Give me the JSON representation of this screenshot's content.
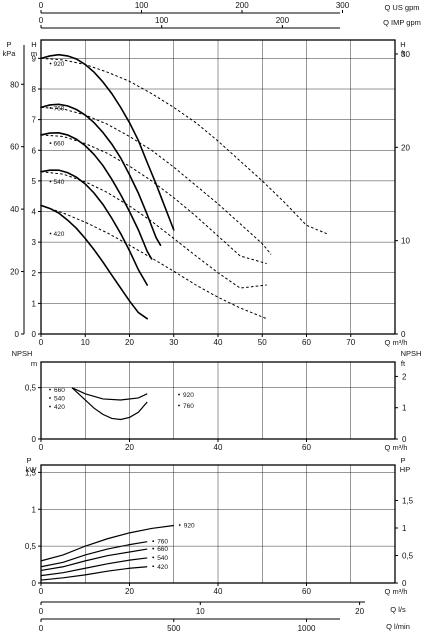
{
  "chart_data": [
    {
      "type": "line",
      "panel": "head",
      "title": "",
      "xlabel": "Q m³/h",
      "xlim": [
        0,
        80
      ],
      "xticks": [
        0,
        10,
        20,
        30,
        40,
        50,
        60,
        70
      ],
      "y_left_label": "H m",
      "y_left2_label": "P kPa",
      "y_right_label": "H ft",
      "ylim": [
        0,
        9.6
      ],
      "yticks": [
        0,
        1,
        2,
        3,
        4,
        5,
        6,
        7,
        8,
        9
      ],
      "kpa_ticks": [
        0,
        20,
        40,
        60,
        80
      ],
      "ft_ticks": [
        0,
        10,
        20,
        30
      ],
      "top_axes": [
        {
          "label": "Q US gpm",
          "ticks": [
            0,
            100,
            200,
            300
          ]
        },
        {
          "label": "Q IMP gpm",
          "ticks": [
            0,
            100,
            200
          ]
        }
      ],
      "grid": true,
      "series": [
        {
          "name": "920",
          "style": "solid",
          "x": [
            0,
            2,
            4,
            6,
            8,
            10,
            12,
            14,
            16,
            18,
            20,
            22,
            24,
            26,
            28,
            30
          ],
          "y": [
            9.0,
            9.08,
            9.12,
            9.08,
            8.98,
            8.8,
            8.55,
            8.23,
            7.85,
            7.4,
            6.9,
            6.32,
            5.6,
            4.9,
            4.15,
            3.4
          ]
        },
        {
          "name": "920",
          "style": "dashed",
          "x": [
            0,
            5,
            10,
            15,
            20,
            25,
            30,
            35,
            40,
            45,
            50,
            55,
            60,
            65
          ],
          "y": [
            9.0,
            8.95,
            8.8,
            8.55,
            8.25,
            7.85,
            7.4,
            6.9,
            6.3,
            5.65,
            5.0,
            4.3,
            3.55,
            3.25
          ]
        },
        {
          "name": "760",
          "style": "solid",
          "x": [
            0,
            2,
            4,
            6,
            8,
            10,
            12,
            14,
            16,
            18,
            20,
            22,
            24,
            26,
            27
          ],
          "y": [
            7.4,
            7.48,
            7.5,
            7.45,
            7.33,
            7.15,
            6.9,
            6.58,
            6.2,
            5.75,
            5.2,
            4.6,
            3.9,
            3.15,
            2.9
          ]
        },
        {
          "name": "760",
          "style": "dashed",
          "x": [
            0,
            5,
            10,
            15,
            20,
            25,
            30,
            35,
            40,
            45,
            50,
            52
          ],
          "y": [
            7.4,
            7.35,
            7.15,
            6.85,
            6.45,
            6.0,
            5.45,
            4.85,
            4.25,
            3.6,
            2.95,
            2.6
          ]
        },
        {
          "name": "660",
          "style": "solid",
          "x": [
            0,
            2,
            4,
            6,
            8,
            10,
            12,
            14,
            16,
            18,
            20,
            22,
            24,
            25
          ],
          "y": [
            6.5,
            6.56,
            6.57,
            6.5,
            6.36,
            6.15,
            5.86,
            5.5,
            5.05,
            4.55,
            4.0,
            3.4,
            2.7,
            2.45
          ]
        },
        {
          "name": "660",
          "style": "dashed",
          "x": [
            0,
            5,
            10,
            15,
            20,
            25,
            30,
            35,
            40,
            45,
            51
          ],
          "y": [
            6.5,
            6.45,
            6.22,
            5.9,
            5.48,
            5.0,
            4.45,
            3.85,
            3.2,
            2.55,
            2.3
          ]
        },
        {
          "name": "540",
          "style": "solid",
          "x": [
            0,
            2,
            4,
            6,
            8,
            10,
            12,
            14,
            16,
            18,
            20,
            22,
            24
          ],
          "y": [
            5.3,
            5.35,
            5.35,
            5.27,
            5.12,
            4.9,
            4.6,
            4.23,
            3.78,
            3.28,
            2.72,
            2.1,
            1.6
          ]
        },
        {
          "name": "540",
          "style": "dashed",
          "x": [
            0,
            5,
            10,
            15,
            20,
            25,
            30,
            35,
            40,
            45,
            51
          ],
          "y": [
            5.3,
            5.22,
            4.97,
            4.62,
            4.18,
            3.68,
            3.12,
            2.55,
            2.0,
            1.5,
            1.6
          ]
        },
        {
          "name": "420",
          "style": "solid",
          "x": [
            0,
            2,
            4,
            6,
            8,
            10,
            12,
            14,
            16,
            18,
            20,
            22,
            24
          ],
          "y": [
            4.2,
            4.1,
            3.95,
            3.72,
            3.45,
            3.12,
            2.75,
            2.35,
            1.92,
            1.5,
            1.08,
            0.7,
            0.5
          ]
        },
        {
          "name": "420",
          "style": "dashed",
          "x": [
            0,
            5,
            10,
            15,
            20,
            25,
            30,
            35,
            40,
            45,
            51
          ],
          "y": [
            4.2,
            3.95,
            3.65,
            3.3,
            2.9,
            2.48,
            2.05,
            1.6,
            1.2,
            0.85,
            0.5
          ]
        }
      ],
      "labels": [
        {
          "text": "920",
          "x": 3.5,
          "y": 8.75
        },
        {
          "text": "760",
          "x": 3.5,
          "y": 7.3
        },
        {
          "text": "660",
          "x": 3.5,
          "y": 6.15
        },
        {
          "text": "540",
          "x": 3.5,
          "y": 4.9
        },
        {
          "text": "420",
          "x": 3.5,
          "y": 3.2
        }
      ]
    },
    {
      "type": "line",
      "panel": "npsh",
      "title": "",
      "xlabel": "Q m³/h",
      "xlim": [
        0,
        80
      ],
      "xticks": [
        0,
        20,
        40,
        60
      ],
      "y_left_label": "NPSH m",
      "y_right_label": "NPSH ft",
      "ylim": [
        0,
        0.75
      ],
      "yticks": [
        0,
        0.5
      ],
      "ytick_labels": [
        "0",
        "0,5"
      ],
      "ft_ticks": [
        0,
        1,
        2
      ],
      "grid": true,
      "series": [
        {
          "name": "660 / 540 / 420",
          "x": [
            7,
            10,
            12,
            14,
            16,
            18,
            20,
            22,
            24
          ],
          "y": [
            0.5,
            0.38,
            0.3,
            0.24,
            0.2,
            0.19,
            0.21,
            0.26,
            0.36
          ]
        },
        {
          "name": "920 / 760",
          "x": [
            7,
            10,
            14,
            18,
            22,
            24
          ],
          "y": [
            0.5,
            0.44,
            0.39,
            0.38,
            0.4,
            0.44
          ]
        }
      ],
      "labels_left": [
        "660",
        "540",
        "420"
      ],
      "labels_right": [
        "920",
        "760"
      ]
    },
    {
      "type": "line",
      "panel": "power",
      "title": "",
      "xlabel": "Q m³/h",
      "xlim": [
        0,
        80
      ],
      "xticks": [
        0,
        20,
        40,
        60
      ],
      "y_left_label": "P kW",
      "y_right_label": "P HP",
      "ylim": [
        0,
        1.6
      ],
      "yticks": [
        0,
        0.5,
        1,
        1.5
      ],
      "ytick_labels": [
        "0",
        "0,5",
        "1",
        "1,5"
      ],
      "hp_ticks": [
        0,
        0.5,
        1,
        1.5
      ],
      "hp_tick_labels": [
        "0",
        "0,5",
        "1",
        "1,5"
      ],
      "bottom_axes": [
        {
          "label": "Q l/s",
          "ticks": [
            0,
            10,
            20
          ]
        },
        {
          "label": "Q l/min",
          "ticks": [
            0,
            500,
            1000
          ]
        }
      ],
      "grid": true,
      "series": [
        {
          "name": "920",
          "x": [
            0,
            5,
            10,
            15,
            20,
            25,
            30
          ],
          "y": [
            0.3,
            0.38,
            0.5,
            0.6,
            0.68,
            0.74,
            0.78
          ]
        },
        {
          "name": "760",
          "x": [
            0,
            5,
            10,
            15,
            20,
            24
          ],
          "y": [
            0.22,
            0.28,
            0.38,
            0.46,
            0.52,
            0.56
          ]
        },
        {
          "name": "660",
          "x": [
            0,
            5,
            10,
            15,
            20,
            24
          ],
          "y": [
            0.17,
            0.22,
            0.3,
            0.37,
            0.42,
            0.46
          ]
        },
        {
          "name": "540",
          "x": [
            0,
            5,
            10,
            15,
            20,
            24
          ],
          "y": [
            0.1,
            0.14,
            0.2,
            0.26,
            0.31,
            0.34
          ]
        },
        {
          "name": "420",
          "x": [
            0,
            5,
            10,
            15,
            20,
            24
          ],
          "y": [
            0.04,
            0.07,
            0.11,
            0.16,
            0.2,
            0.22
          ]
        }
      ]
    }
  ]
}
